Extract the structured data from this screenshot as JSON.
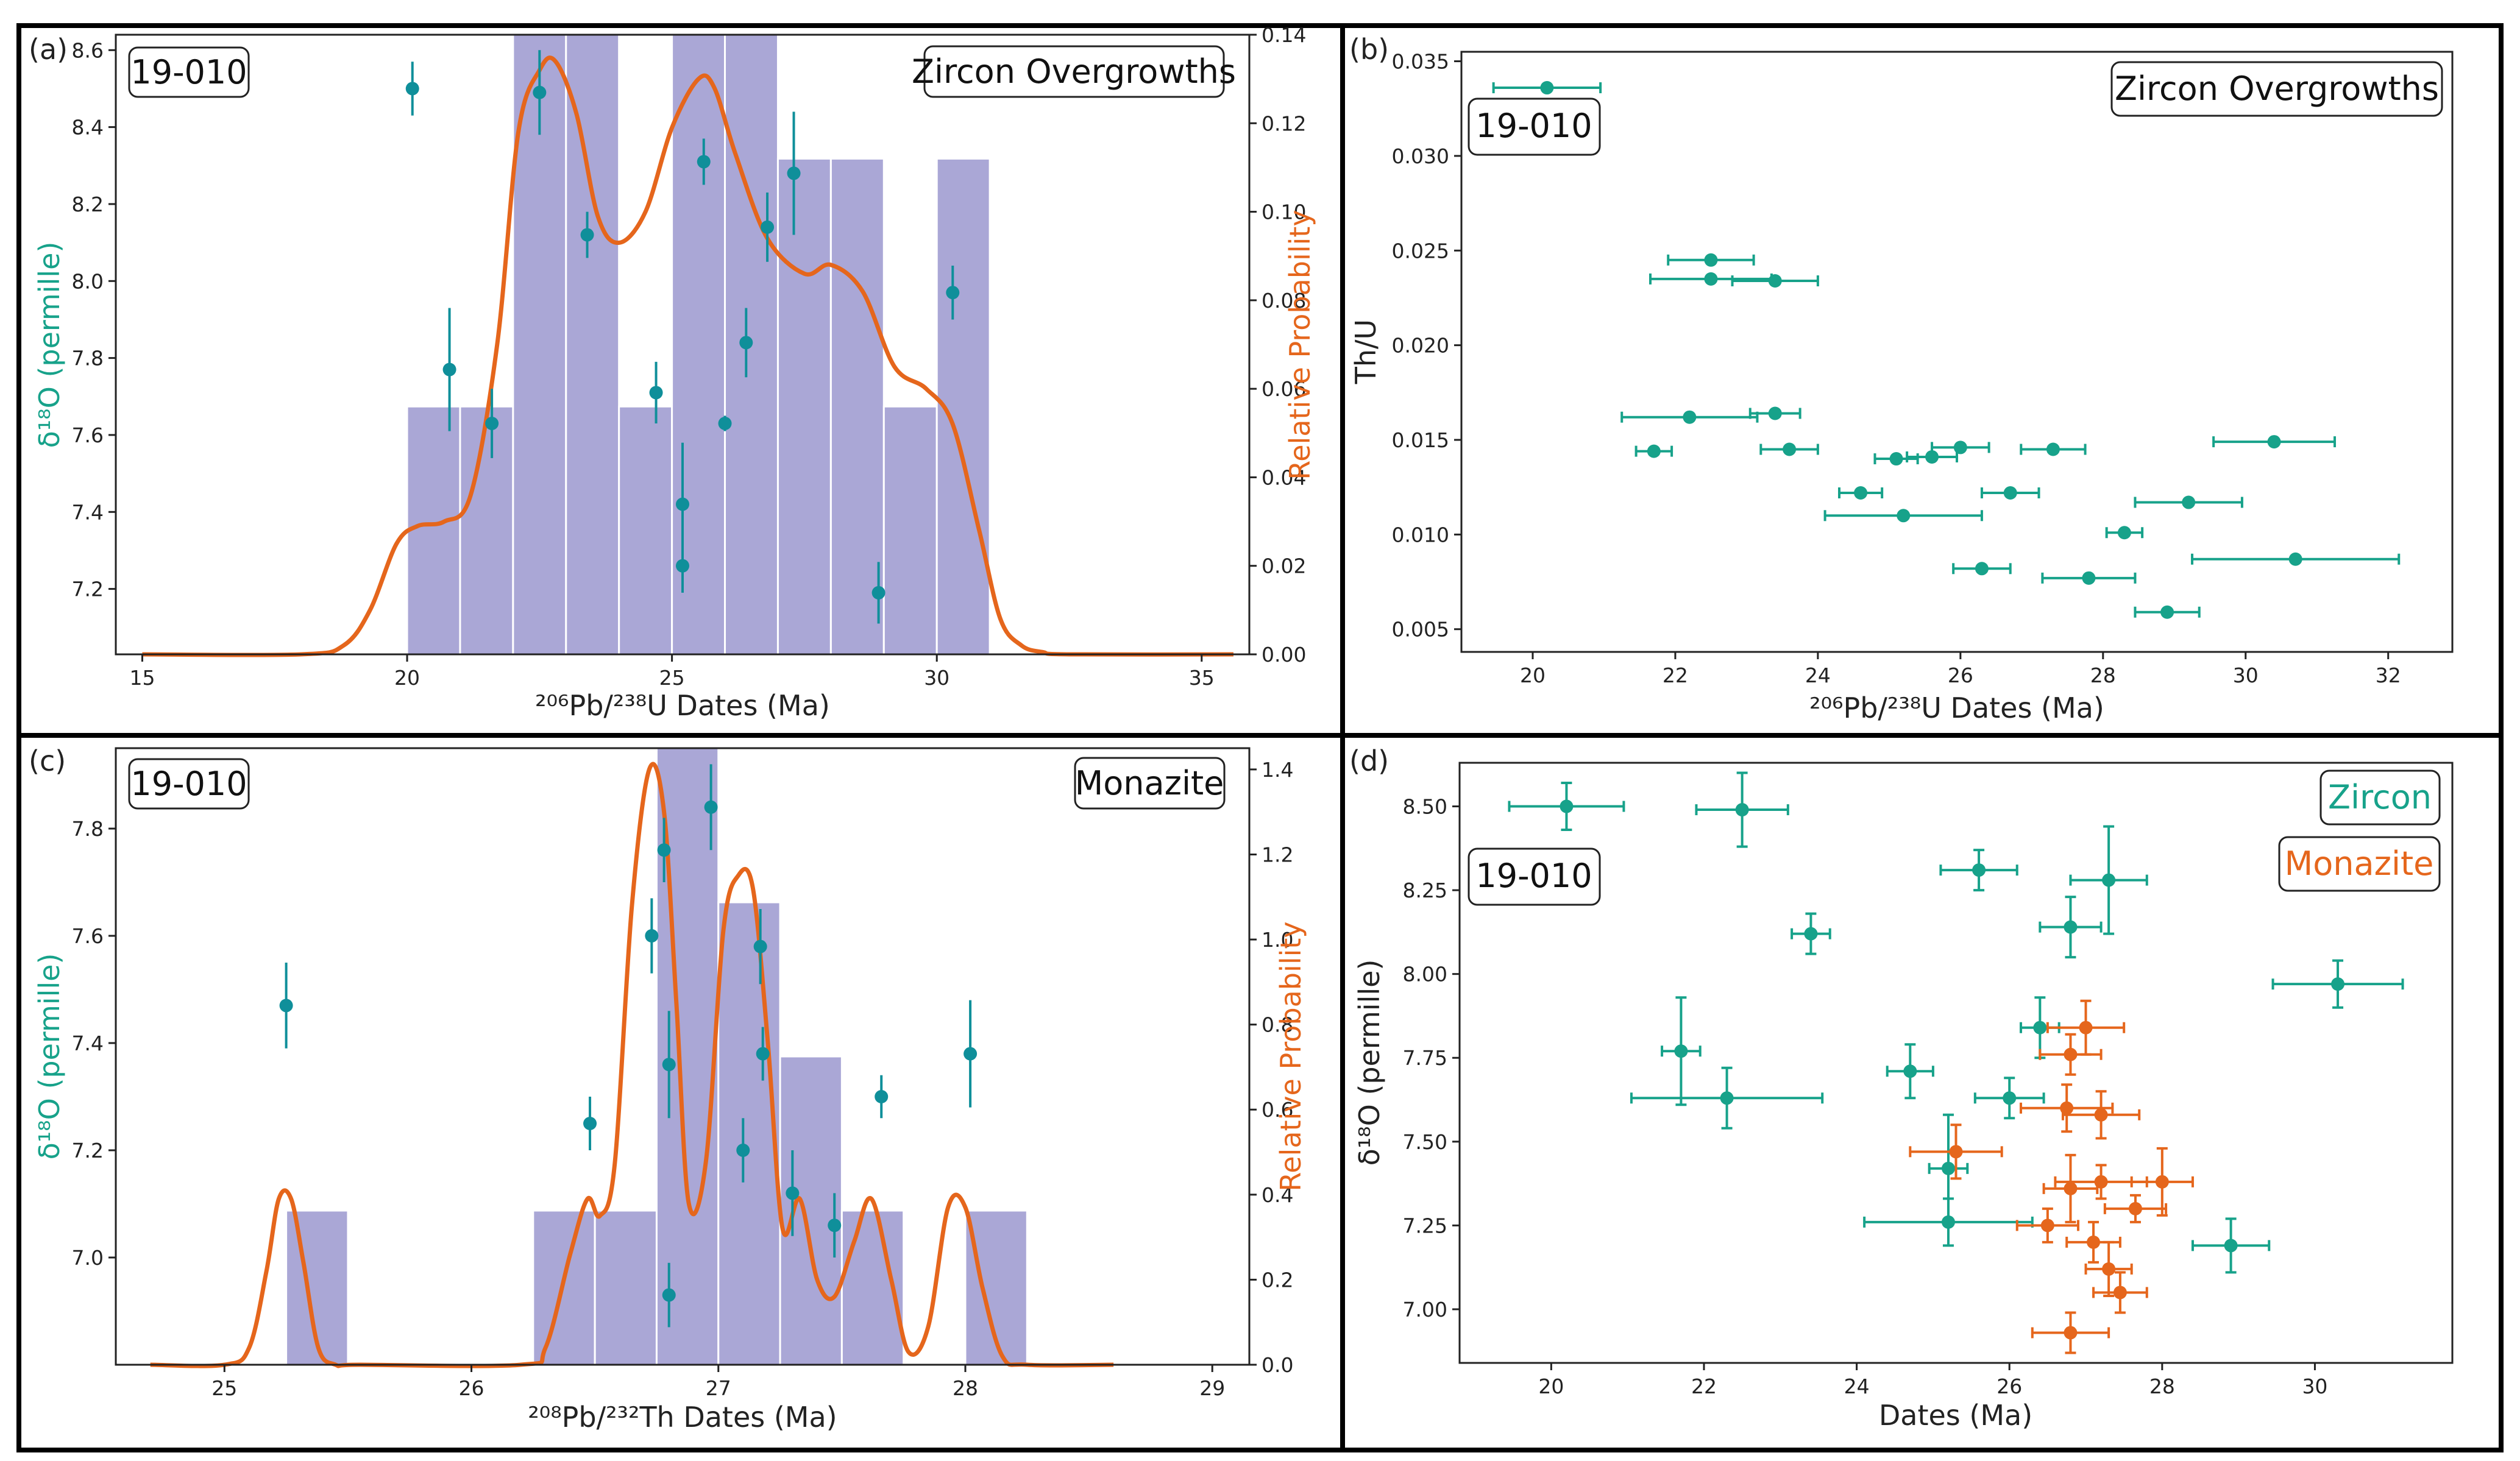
{
  "colors": {
    "teal": "#17a28a",
    "teal_dark": "#0f8f9a",
    "orange": "#e5661c",
    "bar_fill": "#aaa7d6",
    "frame": "#000000"
  },
  "panels": [
    {
      "id": "a",
      "panel_label": "(a)",
      "sample_label": "19-010",
      "mineral_label": "Zircon Overgrowths",
      "xlabel": "²⁰⁶Pb/²³⁸U Dates (Ma)",
      "ylabel_left": "δ¹⁸O (permille)",
      "ylabel_right": "Relative Probability",
      "xticks": [
        "15",
        "20",
        "25",
        "30",
        "35"
      ],
      "yticks_left": [
        "7.2",
        "7.4",
        "7.6",
        "7.8",
        "8.0",
        "8.2",
        "8.4",
        "8.6"
      ],
      "yticks_right": [
        "0.00",
        "0.02",
        "0.04",
        "0.06",
        "0.08",
        "0.10",
        "0.12",
        "0.14"
      ]
    },
    {
      "id": "b",
      "panel_label": "(b)",
      "sample_label": "19-010",
      "mineral_label": "Zircon Overgrowths",
      "xlabel": "²⁰⁶Pb/²³⁸U Dates (Ma)",
      "ylabel_left": "Th/U",
      "xticks": [
        "20",
        "22",
        "24",
        "26",
        "28",
        "30",
        "32"
      ],
      "yticks_left": [
        "0.005",
        "0.010",
        "0.015",
        "0.020",
        "0.025",
        "0.030",
        "0.035"
      ]
    },
    {
      "id": "c",
      "panel_label": "(c)",
      "sample_label": "19-010",
      "mineral_label": "Monazite",
      "xlabel": "²⁰⁸Pb/²³²Th Dates (Ma)",
      "ylabel_left": "δ¹⁸O (permille)",
      "ylabel_right": "Relative Probability",
      "xticks": [
        "25",
        "26",
        "27",
        "28",
        "29"
      ],
      "yticks_left": [
        "7.0",
        "7.2",
        "7.4",
        "7.6",
        "7.8"
      ],
      "yticks_right": [
        "0.0",
        "0.2",
        "0.4",
        "0.6",
        "0.8",
        "1.0",
        "1.2",
        "1.4"
      ]
    },
    {
      "id": "d",
      "panel_label": "(d)",
      "sample_label": "19-010",
      "legend": [
        "Zircon",
        "Monazite"
      ],
      "xlabel": "Dates (Ma)",
      "ylabel_left": "δ¹⁸O (permille)",
      "xticks": [
        "20",
        "22",
        "24",
        "26",
        "28",
        "30"
      ],
      "yticks_left": [
        "7.00",
        "7.25",
        "7.50",
        "7.75",
        "8.00",
        "8.25",
        "8.50"
      ]
    }
  ],
  "chart_data": [
    {
      "panel": "a",
      "type": "histogram + kde + scatter",
      "title": "Zircon Overgrowths",
      "xlabel": "206Pb/238U Dates (Ma)",
      "ylabel": "δ18O (permille)",
      "y2label": "Relative Probability",
      "xlim": [
        14.5,
        35.9
      ],
      "ylim": [
        7.03,
        8.64
      ],
      "y2lim": [
        0,
        0.14
      ],
      "histogram": {
        "bin_edges": [
          20,
          21,
          22,
          23,
          24,
          25,
          26,
          27,
          28,
          29,
          30,
          31
        ],
        "counts": [
          2,
          2,
          5,
          5,
          2,
          5,
          5,
          4,
          4,
          2,
          4
        ],
        "count_max": 5
      },
      "kde": {
        "x": [
          15,
          18,
          18.8,
          19.3,
          19.8,
          20.2,
          20.7,
          21.2,
          21.7,
          22.1,
          22.5,
          22.8,
          23.2,
          23.6,
          24.0,
          24.5,
          25.0,
          25.5,
          25.8,
          26.2,
          26.8,
          27.5,
          28.0,
          28.6,
          29.2,
          29.8,
          30.3,
          30.8,
          31.2,
          31.6,
          32.0,
          32.5,
          35.6
        ],
        "y": [
          0,
          0,
          0.002,
          0.01,
          0.025,
          0.029,
          0.03,
          0.036,
          0.07,
          0.118,
          0.132,
          0.134,
          0.122,
          0.099,
          0.093,
          0.1,
          0.119,
          0.13,
          0.128,
          0.113,
          0.094,
          0.086,
          0.088,
          0.082,
          0.065,
          0.06,
          0.052,
          0.028,
          0.008,
          0.002,
          0.0005,
          0,
          0
        ]
      },
      "points": [
        {
          "x": 20.1,
          "y": 8.5,
          "yerr": 0.07
        },
        {
          "x": 20.8,
          "y": 7.77,
          "yerr": 0.16
        },
        {
          "x": 21.6,
          "y": 7.63,
          "yerr": 0.09
        },
        {
          "x": 22.5,
          "y": 8.49,
          "yerr": 0.11
        },
        {
          "x": 23.4,
          "y": 8.12,
          "yerr": 0.06
        },
        {
          "x": 24.7,
          "y": 7.71,
          "yerr": 0.08
        },
        {
          "x": 25.2,
          "y": 7.42,
          "yerr": 0.16
        },
        {
          "x": 25.2,
          "y": 7.26,
          "yerr": 0.07
        },
        {
          "x": 25.6,
          "y": 8.31,
          "yerr": 0.06
        },
        {
          "x": 26.0,
          "y": 7.63,
          "yerr": 0.02
        },
        {
          "x": 26.4,
          "y": 7.84,
          "yerr": 0.09
        },
        {
          "x": 26.8,
          "y": 8.14,
          "yerr": 0.09
        },
        {
          "x": 27.3,
          "y": 8.28,
          "yerr": 0.16
        },
        {
          "x": 28.9,
          "y": 7.19,
          "yerr": 0.08
        },
        {
          "x": 30.3,
          "y": 7.97,
          "yerr": 0.07
        }
      ]
    },
    {
      "panel": "b",
      "type": "scatter",
      "title": "Zircon Overgrowths",
      "xlabel": "206Pb/238U Dates (Ma)",
      "ylabel": "Th/U",
      "xlim": [
        19.0,
        32.9
      ],
      "ylim": [
        0.0038,
        0.0355
      ],
      "points": [
        {
          "x": 20.2,
          "y": 0.0336,
          "xerr": 0.75
        },
        {
          "x": 22.5,
          "y": 0.0245,
          "xerr": 0.6
        },
        {
          "x": 22.5,
          "y": 0.0235,
          "xerr": 0.85
        },
        {
          "x": 23.4,
          "y": 0.0234,
          "xerr": 0.6
        },
        {
          "x": 22.2,
          "y": 0.0162,
          "xerr": 0.95
        },
        {
          "x": 23.4,
          "y": 0.0164,
          "xerr": 0.35
        },
        {
          "x": 21.7,
          "y": 0.0144,
          "xerr": 0.25
        },
        {
          "x": 23.6,
          "y": 0.0145,
          "xerr": 0.4
        },
        {
          "x": 25.1,
          "y": 0.014,
          "xerr": 0.3
        },
        {
          "x": 25.6,
          "y": 0.0141,
          "xerr": 0.35
        },
        {
          "x": 26.0,
          "y": 0.0146,
          "xerr": 0.4
        },
        {
          "x": 27.3,
          "y": 0.0145,
          "xerr": 0.45
        },
        {
          "x": 30.4,
          "y": 0.0149,
          "xerr": 0.85
        },
        {
          "x": 24.6,
          "y": 0.0122,
          "xerr": 0.3
        },
        {
          "x": 25.2,
          "y": 0.011,
          "xerr": 1.1
        },
        {
          "x": 26.7,
          "y": 0.0122,
          "xerr": 0.4
        },
        {
          "x": 29.2,
          "y": 0.0117,
          "xerr": 0.75
        },
        {
          "x": 28.3,
          "y": 0.0101,
          "xerr": 0.25
        },
        {
          "x": 26.3,
          "y": 0.0082,
          "xerr": 0.4
        },
        {
          "x": 27.8,
          "y": 0.0077,
          "xerr": 0.65
        },
        {
          "x": 30.7,
          "y": 0.0087,
          "xerr": 1.45
        },
        {
          "x": 28.9,
          "y": 0.0059,
          "xerr": 0.45
        }
      ]
    },
    {
      "panel": "c",
      "type": "histogram + kde + scatter",
      "title": "Monazite",
      "xlabel": "208Pb/232Th Dates (Ma)",
      "ylabel": "δ18O (permille)",
      "y2label": "Relative Probability",
      "xlim": [
        24.56,
        29.15
      ],
      "ylim": [
        6.8,
        7.95
      ],
      "y2lim": [
        0,
        1.45
      ],
      "histogram": {
        "bin_edges": [
          25.25,
          25.5,
          26.25,
          26.5,
          26.75,
          27.0,
          27.25,
          27.5,
          27.75,
          28.0,
          28.25
        ],
        "counts": [
          1,
          0,
          1,
          1,
          4,
          3,
          2,
          1,
          0,
          1
        ],
        "count_max": 4
      },
      "kde": {
        "x": [
          24.7,
          25.0,
          25.1,
          25.17,
          25.22,
          25.27,
          25.32,
          25.38,
          25.45,
          25.55,
          26.2,
          26.3,
          26.4,
          26.47,
          26.52,
          26.58,
          26.65,
          26.72,
          26.78,
          26.83,
          26.88,
          26.95,
          27.02,
          27.08,
          27.14,
          27.2,
          27.26,
          27.33,
          27.4,
          27.47,
          27.55,
          27.62,
          27.7,
          27.77,
          27.85,
          27.93,
          28.0,
          28.07,
          28.15,
          28.25,
          28.6
        ],
        "y": [
          0,
          0,
          0.04,
          0.22,
          0.39,
          0.39,
          0.24,
          0.04,
          0,
          0,
          0,
          0.04,
          0.26,
          0.39,
          0.35,
          0.47,
          1.08,
          1.4,
          1.3,
          0.85,
          0.38,
          0.48,
          1.02,
          1.15,
          1.12,
          0.76,
          0.32,
          0.39,
          0.2,
          0.16,
          0.29,
          0.39,
          0.2,
          0.03,
          0.09,
          0.37,
          0.37,
          0.18,
          0.02,
          0,
          0
        ]
      },
      "points": [
        {
          "x": 25.25,
          "y": 7.47,
          "yerr": 0.08
        },
        {
          "x": 26.48,
          "y": 7.25,
          "yerr": 0.05
        },
        {
          "x": 26.73,
          "y": 7.6,
          "yerr": 0.07
        },
        {
          "x": 26.78,
          "y": 7.76,
          "yerr": 0.06
        },
        {
          "x": 26.8,
          "y": 7.36,
          "yerr": 0.1
        },
        {
          "x": 26.8,
          "y": 6.93,
          "yerr": 0.06
        },
        {
          "x": 26.97,
          "y": 7.84,
          "yerr": 0.08
        },
        {
          "x": 27.1,
          "y": 7.2,
          "yerr": 0.06
        },
        {
          "x": 27.17,
          "y": 7.58,
          "yerr": 0.07
        },
        {
          "x": 27.18,
          "y": 7.38,
          "yerr": 0.05
        },
        {
          "x": 27.3,
          "y": 7.12,
          "yerr": 0.08
        },
        {
          "x": 27.47,
          "y": 7.06,
          "yerr": 0.06
        },
        {
          "x": 27.66,
          "y": 7.3,
          "yerr": 0.04
        },
        {
          "x": 28.02,
          "y": 7.38,
          "yerr": 0.1
        }
      ]
    },
    {
      "panel": "d",
      "type": "scatter",
      "xlabel": "Dates (Ma)",
      "ylabel": "δ18O (permille)",
      "xlim": [
        18.8,
        31.8
      ],
      "ylim": [
        6.84,
        8.63
      ],
      "series": [
        {
          "name": "Zircon",
          "points": [
            {
              "x": 20.2,
              "y": 8.5,
              "xerr": 0.75,
              "yerr": 0.07
            },
            {
              "x": 22.5,
              "y": 8.49,
              "xerr": 0.6,
              "yerr": 0.11
            },
            {
              "x": 23.4,
              "y": 8.12,
              "xerr": 0.25,
              "yerr": 0.06
            },
            {
              "x": 25.6,
              "y": 8.31,
              "xerr": 0.5,
              "yerr": 0.06
            },
            {
              "x": 26.8,
              "y": 8.14,
              "xerr": 0.4,
              "yerr": 0.09
            },
            {
              "x": 27.3,
              "y": 8.28,
              "xerr": 0.5,
              "yerr": 0.16
            },
            {
              "x": 30.3,
              "y": 7.97,
              "xerr": 0.85,
              "yerr": 0.07
            },
            {
              "x": 21.7,
              "y": 7.77,
              "xerr": 0.25,
              "yerr": 0.16
            },
            {
              "x": 22.3,
              "y": 7.63,
              "xerr": 1.25,
              "yerr": 0.09
            },
            {
              "x": 24.7,
              "y": 7.71,
              "xerr": 0.3,
              "yerr": 0.08
            },
            {
              "x": 26.0,
              "y": 7.63,
              "xerr": 0.45,
              "yerr": 0.06
            },
            {
              "x": 26.4,
              "y": 7.84,
              "xerr": 0.25,
              "yerr": 0.09
            },
            {
              "x": 25.2,
              "y": 7.42,
              "xerr": 0.25,
              "yerr": 0.16
            },
            {
              "x": 25.2,
              "y": 7.26,
              "xerr": 1.1,
              "yerr": 0.07
            },
            {
              "x": 28.9,
              "y": 7.19,
              "xerr": 0.5,
              "yerr": 0.08
            }
          ]
        },
        {
          "name": "Monazite",
          "points": [
            {
              "x": 27.0,
              "y": 7.84,
              "xerr": 0.5,
              "yerr": 0.08
            },
            {
              "x": 26.8,
              "y": 7.76,
              "xerr": 0.4,
              "yerr": 0.06
            },
            {
              "x": 26.75,
              "y": 7.6,
              "xerr": 0.6,
              "yerr": 0.07
            },
            {
              "x": 27.2,
              "y": 7.58,
              "xerr": 0.5,
              "yerr": 0.07
            },
            {
              "x": 25.3,
              "y": 7.47,
              "xerr": 0.6,
              "yerr": 0.08
            },
            {
              "x": 26.8,
              "y": 7.36,
              "xerr": 0.35,
              "yerr": 0.1
            },
            {
              "x": 27.2,
              "y": 7.38,
              "xerr": 0.6,
              "yerr": 0.05
            },
            {
              "x": 28.0,
              "y": 7.38,
              "xerr": 0.4,
              "yerr": 0.1
            },
            {
              "x": 27.65,
              "y": 7.3,
              "xerr": 0.4,
              "yerr": 0.04
            },
            {
              "x": 26.5,
              "y": 7.25,
              "xerr": 0.4,
              "yerr": 0.05
            },
            {
              "x": 27.1,
              "y": 7.2,
              "xerr": 0.35,
              "yerr": 0.06
            },
            {
              "x": 27.3,
              "y": 7.12,
              "xerr": 0.3,
              "yerr": 0.08
            },
            {
              "x": 27.45,
              "y": 7.05,
              "xerr": 0.35,
              "yerr": 0.06
            },
            {
              "x": 26.8,
              "y": 6.93,
              "xerr": 0.5,
              "yerr": 0.06
            }
          ]
        }
      ]
    }
  ]
}
